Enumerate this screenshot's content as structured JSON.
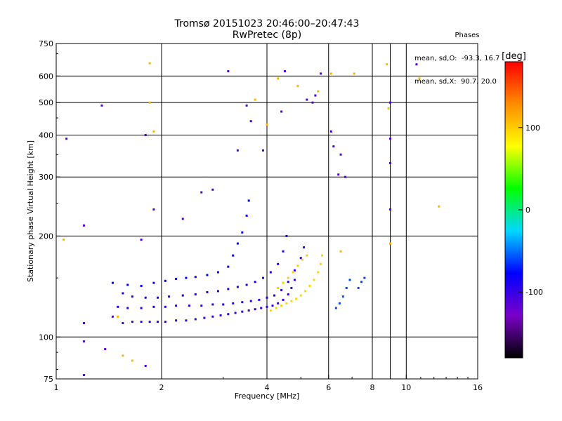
{
  "header": {
    "title": "Tromsø 20151023 20:46:00–20:47:43",
    "subtitle": "RwPretec (8p)"
  },
  "stats": {
    "heading": "Phases",
    "line_o": "mean, sd,O:  -93.3, 16.7",
    "line_x": "mean, sd,X:  90.7, 20.0"
  },
  "chart_data": {
    "type": "scatter",
    "xlabel": "Frequency [MHz]",
    "ylabel": "Stationary phase Virtual Height [km]",
    "x_scale": "log",
    "y_scale": "log",
    "xlim": [
      1,
      16
    ],
    "ylim": [
      75,
      750
    ],
    "x_ticks": [
      1,
      2,
      4,
      6,
      8,
      10,
      16
    ],
    "x_tick_labels": [
      "1",
      "2",
      "4",
      "6",
      "8",
      "10",
      "16"
    ],
    "x_gridlines": [
      2,
      4,
      6,
      8,
      9,
      10
    ],
    "y_ticks": [
      75,
      100,
      200,
      300,
      400,
      500,
      600,
      750
    ],
    "y_tick_labels": [
      "75",
      "100",
      "200",
      "300",
      "400",
      "500",
      "600",
      "750"
    ],
    "y_gridlines": [
      100,
      200,
      300,
      400,
      500,
      600
    ],
    "grid": true,
    "colorbar": {
      "label": "[deg]",
      "range": [
        -180,
        180
      ],
      "ticks": [
        100,
        0,
        -100
      ],
      "tick_labels": [
        "100",
        "0",
        "-100"
      ],
      "colors": [
        "#000000",
        "#7a00c8",
        "#0000ff",
        "#00d7ff",
        "#00ff00",
        "#ffff00",
        "#ff8c00",
        "#ff0000"
      ]
    },
    "series": [
      {
        "trace": "o-mode lower",
        "phase": -100,
        "points": [
          [
            1.55,
            110
          ],
          [
            1.65,
            111
          ],
          [
            1.75,
            111
          ],
          [
            1.85,
            111
          ],
          [
            1.95,
            111
          ],
          [
            2.05,
            111
          ],
          [
            2.2,
            112
          ],
          [
            2.35,
            112
          ],
          [
            2.5,
            113
          ],
          [
            2.65,
            114
          ],
          [
            2.8,
            115
          ],
          [
            2.95,
            116
          ],
          [
            3.1,
            117
          ],
          [
            3.25,
            118
          ],
          [
            3.4,
            119
          ],
          [
            3.55,
            120
          ],
          [
            3.7,
            121
          ],
          [
            3.85,
            122
          ],
          [
            4.0,
            123
          ],
          [
            4.15,
            124
          ],
          [
            4.3,
            126
          ],
          [
            4.45,
            129
          ],
          [
            4.6,
            134
          ],
          [
            4.7,
            140
          ],
          [
            4.8,
            148
          ]
        ]
      },
      {
        "trace": "o-mode second",
        "phase": -95,
        "points": [
          [
            1.5,
            123
          ],
          [
            1.6,
            122
          ],
          [
            1.75,
            122
          ],
          [
            1.9,
            123
          ],
          [
            2.05,
            123
          ],
          [
            2.2,
            124
          ],
          [
            2.4,
            124
          ],
          [
            2.6,
            124
          ],
          [
            2.8,
            125
          ],
          [
            3.0,
            125
          ],
          [
            3.2,
            126
          ],
          [
            3.4,
            127
          ],
          [
            3.6,
            128
          ],
          [
            3.8,
            129
          ],
          [
            4.0,
            131
          ],
          [
            4.2,
            133
          ],
          [
            4.4,
            138
          ],
          [
            4.6,
            146
          ],
          [
            4.8,
            158
          ],
          [
            5.0,
            172
          ],
          [
            5.1,
            185
          ]
        ]
      },
      {
        "trace": "o-mode third",
        "phase": -90,
        "points": [
          [
            1.55,
            135
          ],
          [
            1.65,
            132
          ],
          [
            1.8,
            131
          ],
          [
            1.95,
            131
          ],
          [
            2.1,
            132
          ],
          [
            2.3,
            133
          ],
          [
            2.5,
            134
          ],
          [
            2.7,
            136
          ],
          [
            2.9,
            137
          ],
          [
            3.1,
            139
          ],
          [
            3.3,
            141
          ],
          [
            3.5,
            143
          ],
          [
            3.7,
            146
          ],
          [
            3.9,
            150
          ],
          [
            4.1,
            156
          ],
          [
            4.3,
            165
          ],
          [
            4.45,
            180
          ],
          [
            4.55,
            200
          ]
        ]
      },
      {
        "trace": "o-mode fourth",
        "phase": -80,
        "points": [
          [
            1.45,
            145
          ],
          [
            1.6,
            143
          ],
          [
            1.75,
            142
          ],
          [
            1.9,
            145
          ],
          [
            2.05,
            147
          ],
          [
            2.2,
            149
          ],
          [
            2.35,
            150
          ],
          [
            2.5,
            151
          ],
          [
            2.7,
            153
          ],
          [
            2.9,
            156
          ],
          [
            3.1,
            162
          ],
          [
            3.2,
            175
          ],
          [
            3.3,
            190
          ],
          [
            3.4,
            205
          ],
          [
            3.5,
            230
          ],
          [
            3.55,
            255
          ]
        ]
      },
      {
        "trace": "x-mode",
        "phase": 95,
        "points": [
          [
            4.1,
            120
          ],
          [
            4.25,
            122
          ],
          [
            4.4,
            124
          ],
          [
            4.55,
            126
          ],
          [
            4.7,
            128
          ],
          [
            4.85,
            130
          ],
          [
            5.0,
            133
          ],
          [
            5.15,
            137
          ],
          [
            5.3,
            142
          ],
          [
            5.45,
            148
          ],
          [
            5.6,
            156
          ],
          [
            5.7,
            165
          ],
          [
            5.75,
            175
          ]
        ]
      },
      {
        "trace": "x-mode upper",
        "phase": 100,
        "points": [
          [
            4.3,
            140
          ],
          [
            4.45,
            145
          ],
          [
            4.6,
            150
          ],
          [
            4.75,
            156
          ],
          [
            4.9,
            163
          ],
          [
            5.05,
            170
          ],
          [
            5.2,
            175
          ]
        ]
      },
      {
        "trace": "high-frequency trace",
        "phase": -60,
        "points": [
          [
            6.3,
            122
          ],
          [
            6.45,
            126
          ],
          [
            6.6,
            132
          ],
          [
            6.75,
            140
          ],
          [
            6.9,
            148
          ],
          [
            7.3,
            140
          ],
          [
            7.45,
            146
          ],
          [
            7.6,
            150
          ]
        ]
      },
      {
        "trace": "scattered echoes",
        "phase": -110,
        "points": [
          [
            1.07,
            390
          ],
          [
            1.2,
            215
          ],
          [
            1.2,
            110
          ],
          [
            1.2,
            97
          ],
          [
            1.2,
            77
          ],
          [
            1.35,
            490
          ],
          [
            1.38,
            92
          ],
          [
            1.45,
            115
          ],
          [
            1.75,
            195
          ],
          [
            1.8,
            400
          ],
          [
            1.8,
            82
          ],
          [
            1.9,
            240
          ],
          [
            2.3,
            225
          ],
          [
            2.6,
            270
          ],
          [
            2.8,
            275
          ],
          [
            3.1,
            620
          ],
          [
            3.3,
            360
          ],
          [
            3.5,
            490
          ],
          [
            3.6,
            440
          ],
          [
            3.9,
            360
          ],
          [
            4.4,
            470
          ],
          [
            4.5,
            620
          ],
          [
            5.2,
            510
          ],
          [
            5.4,
            500
          ],
          [
            5.5,
            525
          ],
          [
            5.7,
            610
          ],
          [
            6.1,
            410
          ],
          [
            6.2,
            370
          ],
          [
            6.4,
            305
          ],
          [
            6.5,
            350
          ],
          [
            6.7,
            300
          ],
          [
            9.0,
            500
          ],
          [
            9.0,
            390
          ],
          [
            9.0,
            330
          ],
          [
            9.0,
            240
          ],
          [
            10.7,
            650
          ]
        ]
      },
      {
        "trace": "colored outliers",
        "phase": 110,
        "points": [
          [
            1.05,
            195
          ],
          [
            1.5,
            115
          ],
          [
            1.55,
            88
          ],
          [
            1.65,
            85
          ],
          [
            1.85,
            655
          ],
          [
            1.85,
            500
          ],
          [
            1.9,
            410
          ],
          [
            3.7,
            510
          ],
          [
            4.0,
            430
          ],
          [
            4.3,
            590
          ],
          [
            4.9,
            560
          ],
          [
            5.6,
            540
          ],
          [
            6.1,
            610
          ],
          [
            6.5,
            180
          ],
          [
            7.1,
            610
          ],
          [
            8.8,
            650
          ],
          [
            8.9,
            480
          ],
          [
            9.0,
            190
          ],
          [
            10.9,
            590
          ],
          [
            12.4,
            245
          ]
        ]
      }
    ]
  }
}
